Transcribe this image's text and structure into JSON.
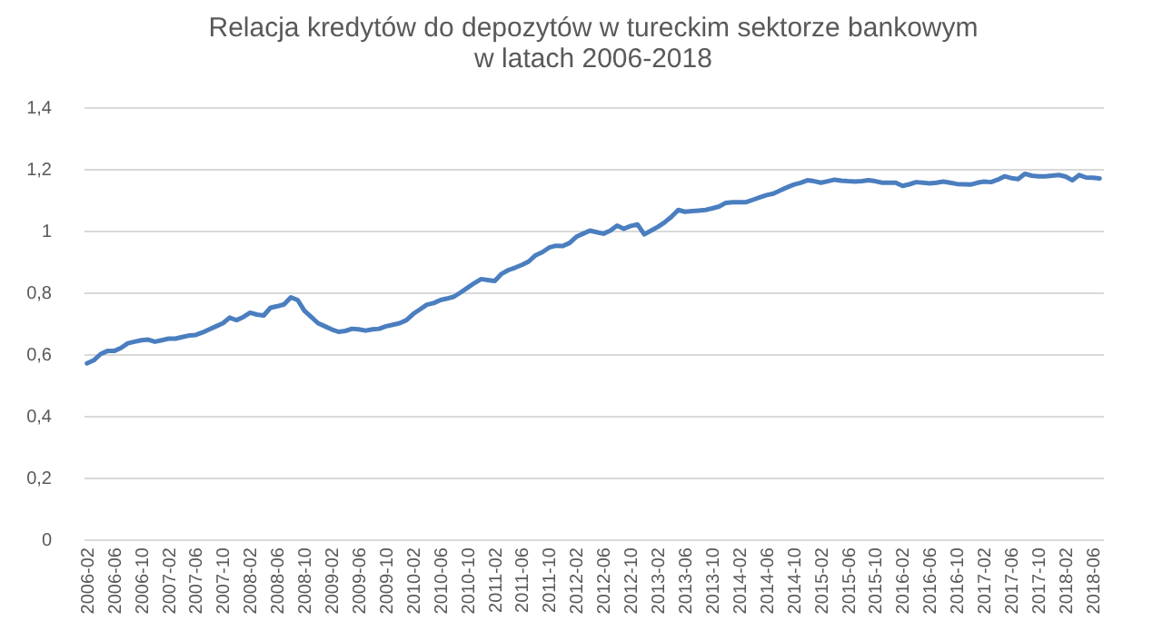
{
  "chart_data": {
    "type": "line",
    "title": "Relacja kredytów do depozytów w tureckim sektorze bankowym\nw latach 2006-2018",
    "categories": [
      "2006-02",
      null,
      null,
      null,
      "2006-06",
      null,
      null,
      null,
      "2006-10",
      null,
      null,
      null,
      "2007-02",
      null,
      null,
      null,
      "2007-06",
      null,
      null,
      null,
      "2007-10",
      null,
      null,
      null,
      "2008-02",
      null,
      null,
      null,
      "2008-06",
      null,
      null,
      null,
      "2008-10",
      null,
      null,
      null,
      "2009-02",
      null,
      null,
      null,
      "2009-06",
      null,
      null,
      null,
      "2009-10",
      null,
      null,
      null,
      "2010-02",
      null,
      null,
      null,
      "2010-06",
      null,
      null,
      null,
      "2010-10",
      null,
      null,
      null,
      "2011-02",
      null,
      null,
      null,
      "2011-06",
      null,
      null,
      null,
      "2011-10",
      null,
      null,
      null,
      "2012-02",
      null,
      null,
      null,
      "2012-06",
      null,
      null,
      null,
      "2012-10",
      null,
      null,
      null,
      "2013-02",
      null,
      null,
      null,
      "2013-06",
      null,
      null,
      null,
      "2013-10",
      null,
      null,
      null,
      "2014-02",
      null,
      null,
      null,
      "2014-06",
      null,
      null,
      null,
      "2014-10",
      null,
      null,
      null,
      "2015-02",
      null,
      null,
      null,
      "2015-06",
      null,
      null,
      null,
      "2015-10",
      null,
      null,
      null,
      "2016-02",
      null,
      null,
      null,
      "2016-06",
      null,
      null,
      null,
      "2016-10",
      null,
      null,
      null,
      "2017-02",
      null,
      null,
      null,
      "2017-06",
      null,
      null,
      null,
      "2017-10",
      null,
      null,
      null,
      "2018-02",
      null,
      null,
      null,
      "2018-06",
      null
    ],
    "series": [
      {
        "color": "#4a7ebf",
        "values": [
          0.57,
          0.58,
          0.6,
          0.61,
          0.61,
          0.62,
          0.635,
          0.64,
          0.645,
          0.647,
          0.64,
          0.645,
          0.65,
          0.65,
          0.655,
          0.66,
          0.662,
          0.67,
          0.68,
          0.69,
          0.7,
          0.718,
          0.71,
          0.72,
          0.734,
          0.728,
          0.725,
          0.75,
          0.755,
          0.761,
          0.784,
          0.775,
          0.74,
          0.72,
          0.7,
          0.69,
          0.68,
          0.672,
          0.675,
          0.682,
          0.68,
          0.676,
          0.68,
          0.682,
          0.69,
          0.695,
          0.7,
          0.71,
          0.73,
          0.745,
          0.76,
          0.765,
          0.775,
          0.78,
          0.786,
          0.8,
          0.815,
          0.83,
          0.843,
          0.84,
          0.837,
          0.86,
          0.872,
          0.88,
          0.889,
          0.9,
          0.92,
          0.93,
          0.945,
          0.951,
          0.95,
          0.96,
          0.98,
          0.99,
          1.0,
          0.995,
          0.99,
          1.0,
          1.016,
          1.006,
          1.015,
          1.02,
          0.988,
          1.0,
          1.012,
          1.027,
          1.045,
          1.067,
          1.061,
          1.063,
          1.065,
          1.067,
          1.072,
          1.078,
          1.09,
          1.092,
          1.092,
          1.092,
          1.1,
          1.108,
          1.115,
          1.12,
          1.13,
          1.14,
          1.149,
          1.155,
          1.163,
          1.16,
          1.155,
          1.16,
          1.165,
          1.162,
          1.16,
          1.159,
          1.16,
          1.163,
          1.16,
          1.155,
          1.155,
          1.155,
          1.145,
          1.15,
          1.157,
          1.155,
          1.153,
          1.155,
          1.159,
          1.155,
          1.151,
          1.15,
          1.149,
          1.155,
          1.159,
          1.157,
          1.165,
          1.176,
          1.17,
          1.167,
          1.184,
          1.178,
          1.176,
          1.176,
          1.178,
          1.18,
          1.175,
          1.163,
          1.18,
          1.172,
          1.171,
          1.169
        ]
      }
    ],
    "ylim": [
      0,
      1.4
    ],
    "yticks": [
      0,
      {
        "value": 0.2,
        "label": "0,2"
      },
      {
        "value": 0.4,
        "label": "0,4"
      },
      {
        "value": 0.6,
        "label": "0,6"
      },
      {
        "value": 0.8,
        "label": "0,8"
      },
      1,
      {
        "value": 1.2,
        "label": "1,2"
      },
      {
        "value": 1.4,
        "label": "1,4"
      }
    ],
    "grid": "y",
    "marker": "none",
    "line_style": "solid"
  }
}
